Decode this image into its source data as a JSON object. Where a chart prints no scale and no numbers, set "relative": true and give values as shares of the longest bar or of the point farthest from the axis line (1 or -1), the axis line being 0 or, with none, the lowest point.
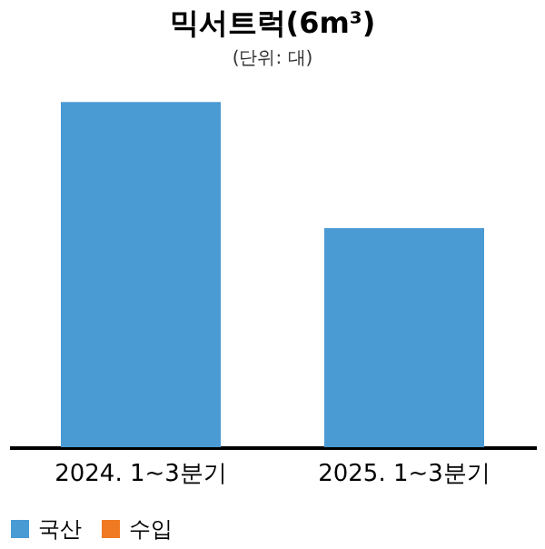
{
  "chart_data": {
    "type": "bar",
    "title": "믹서트럭(6m³)",
    "annotations": [
      "(단위: 대)"
    ],
    "relative": true,
    "categories": [
      "2024. 1~3분기",
      "2025. 1~3분기"
    ],
    "series": [
      {
        "name": "국산",
        "color": "#4a9ad4",
        "values": [
          1,
          0.635
        ]
      },
      {
        "name": "수입",
        "color": "#f07a22",
        "values": [
          null,
          null
        ]
      }
    ],
    "legend": "bottom",
    "grid": false
  }
}
